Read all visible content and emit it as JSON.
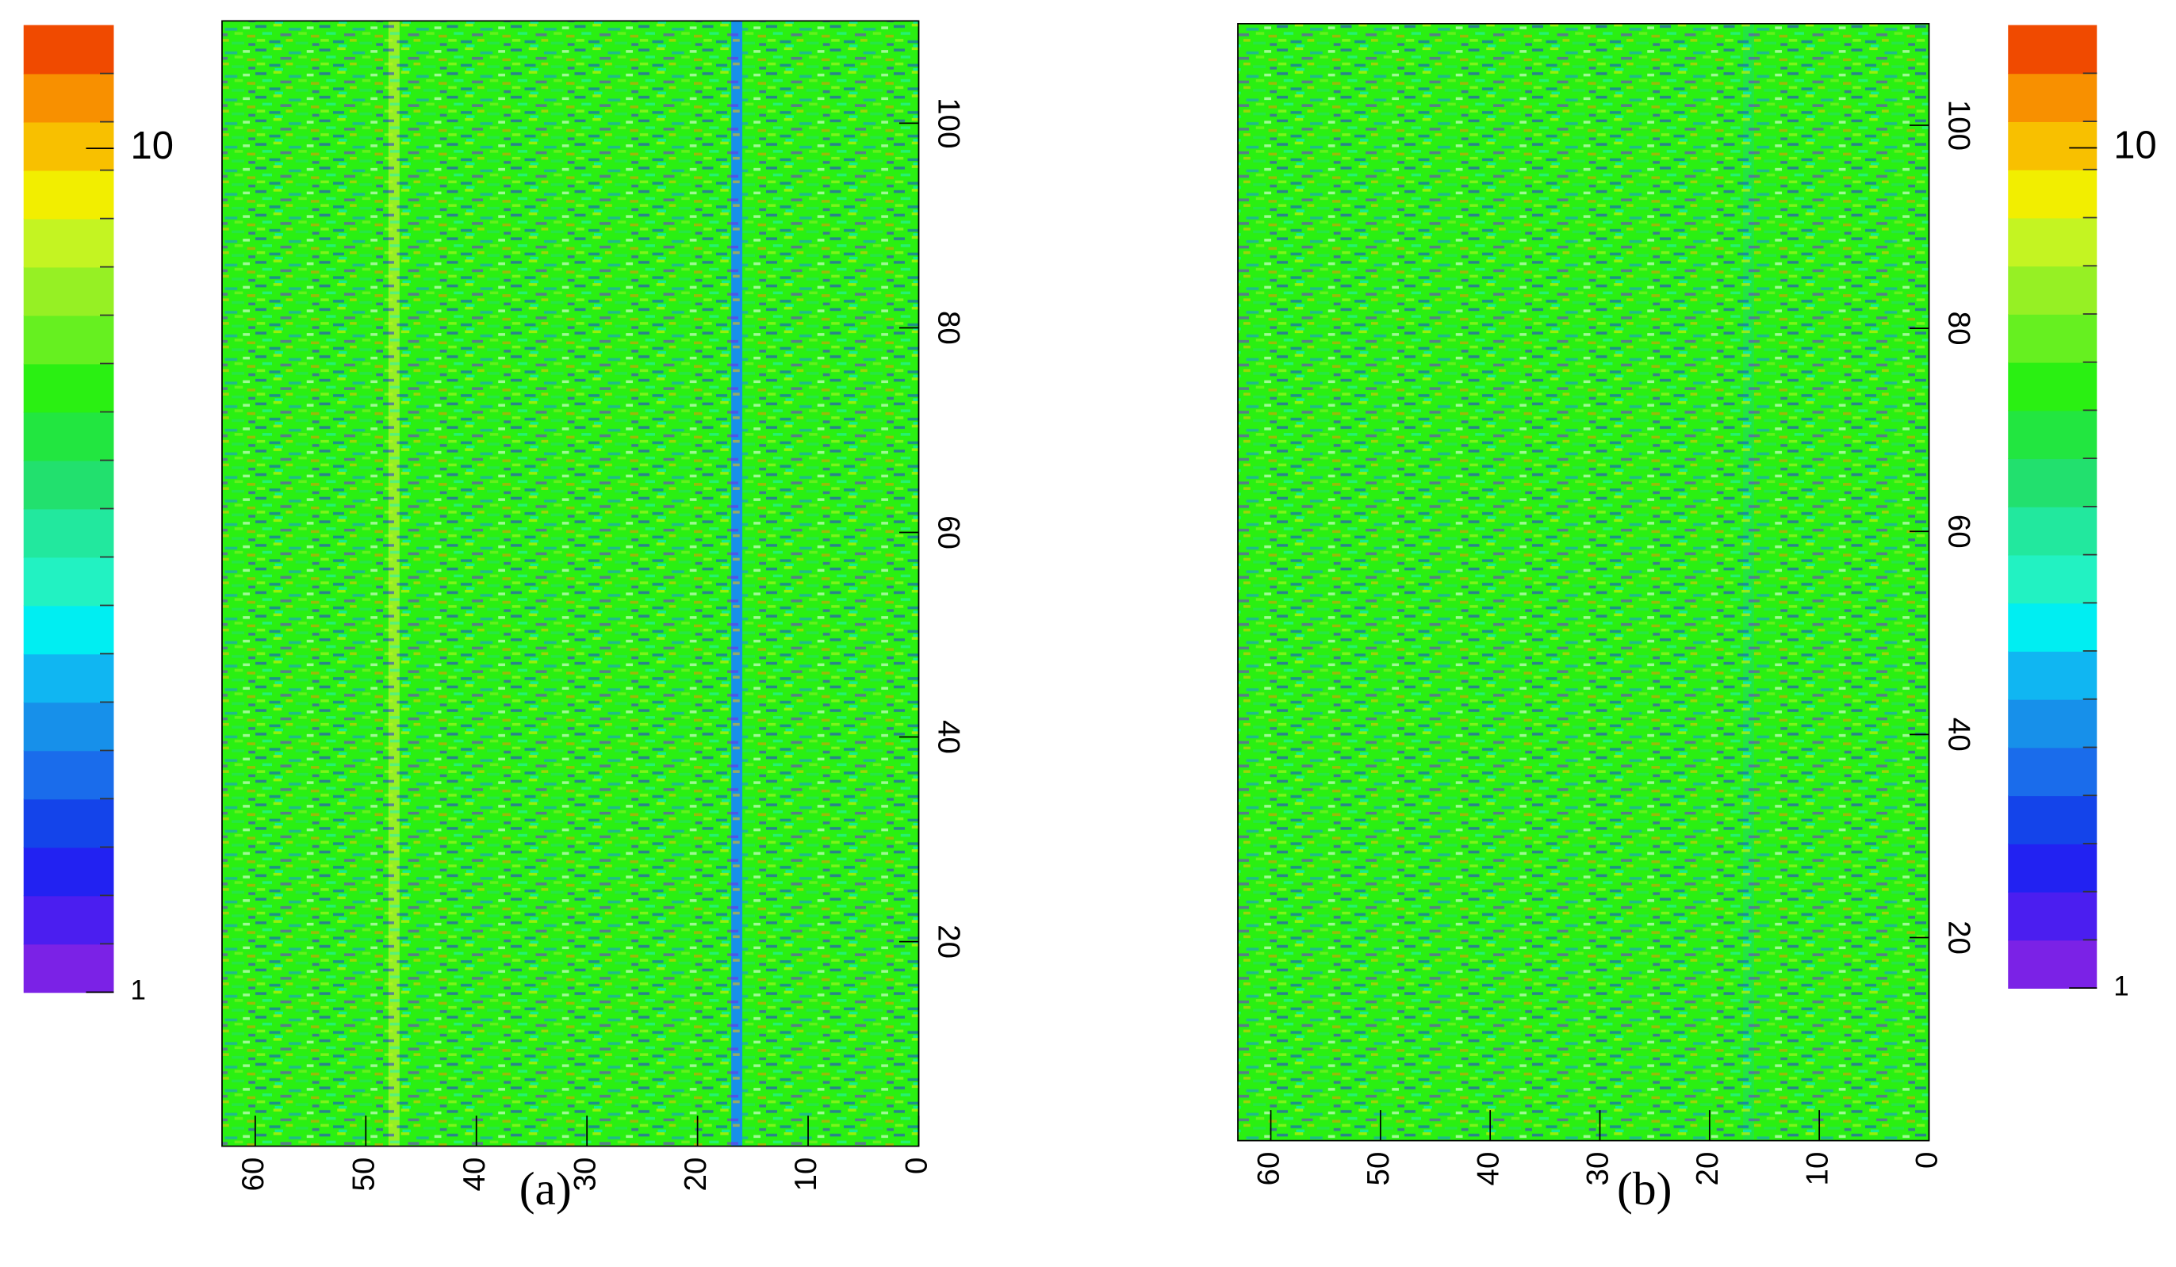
{
  "chart_data": [
    {
      "type": "heatmap",
      "label": "(a)",
      "xlim": [
        63,
        0
      ],
      "xticks": [
        60,
        50,
        40,
        30,
        20,
        10,
        0
      ],
      "ylim": [
        0,
        110
      ],
      "yticks": [
        20,
        40,
        60,
        80,
        100
      ],
      "zlim": [
        1,
        14
      ],
      "zticks": [
        1,
        10
      ],
      "log_z": true,
      "colorbar": "left",
      "colors": [
        "#7b22e6",
        "#4b1ef0",
        "#2222f2",
        "#1444ea",
        "#1a6ceb",
        "#1790ea",
        "#10b6f2",
        "#00eef2",
        "#22f2c2",
        "#22e89e",
        "#22e06e",
        "#22e640",
        "#2af012",
        "#66f020",
        "#96f024",
        "#c4f422",
        "#f2ee00",
        "#f8c000",
        "#f89000",
        "#f04a00"
      ],
      "column_values": [
        5.5,
        5.5,
        5.5,
        5.5,
        5.5,
        5.5,
        5.5,
        5.5,
        5.5,
        5.5,
        5.5,
        5.5,
        5.5,
        5.5,
        5.5,
        5.5,
        2.2,
        5.5,
        5.5,
        5.5,
        5.5,
        5.5,
        5.5,
        5.5,
        5.5,
        5.5,
        5.5,
        5.5,
        5.5,
        5.5,
        5.5,
        5.5,
        5.5,
        5.5,
        5.5,
        5.5,
        5.5,
        5.5,
        5.5,
        5.5,
        5.5,
        5.5,
        5.5,
        5.5,
        5.5,
        5.5,
        5.5,
        6.8,
        5.5,
        5.5,
        5.5,
        5.5,
        5.5,
        5.5,
        5.5,
        5.5,
        5.5,
        5.5,
        5.5,
        5.5,
        5.5,
        5.5,
        5.5
      ]
    },
    {
      "type": "heatmap",
      "label": "(b)",
      "xlim": [
        63,
        0
      ],
      "xticks": [
        60,
        50,
        40,
        30,
        20,
        10,
        0
      ],
      "ylim": [
        0,
        110
      ],
      "yticks": [
        20,
        40,
        60,
        80,
        100
      ],
      "zlim": [
        1,
        14
      ],
      "zticks": [
        1,
        10
      ],
      "log_z": true,
      "colorbar": "right",
      "colors": [
        "#7b22e6",
        "#4b1ef0",
        "#2222f2",
        "#1444ea",
        "#1a6ceb",
        "#1790ea",
        "#10b6f2",
        "#00eef2",
        "#22f2c2",
        "#22e89e",
        "#22e06e",
        "#22e640",
        "#2af012",
        "#66f020",
        "#96f024",
        "#c4f422",
        "#f2ee00",
        "#f8c000",
        "#f89000",
        "#f04a00"
      ],
      "column_values": [
        5.5,
        5.5,
        5.5,
        5.5,
        5.5,
        5.5,
        5.5,
        5.5,
        5.5,
        5.5,
        5.5,
        5.5,
        5.5,
        5.5,
        5.5,
        5.5,
        4.6,
        5.5,
        5.5,
        5.5,
        5.5,
        5.5,
        5.5,
        5.5,
        5.5,
        5.5,
        5.5,
        5.5,
        5.5,
        5.5,
        5.5,
        5.5,
        5.5,
        5.5,
        5.5,
        5.5,
        5.5,
        5.5,
        5.5,
        5.5,
        5.5,
        5.5,
        5.5,
        5.5,
        5.5,
        5.5,
        5.5,
        5.5,
        5.5,
        5.5,
        5.5,
        5.5,
        5.5,
        5.5,
        5.5,
        5.5,
        5.5,
        5.5,
        5.5,
        5.5,
        5.5,
        5.5,
        5.5
      ]
    }
  ]
}
